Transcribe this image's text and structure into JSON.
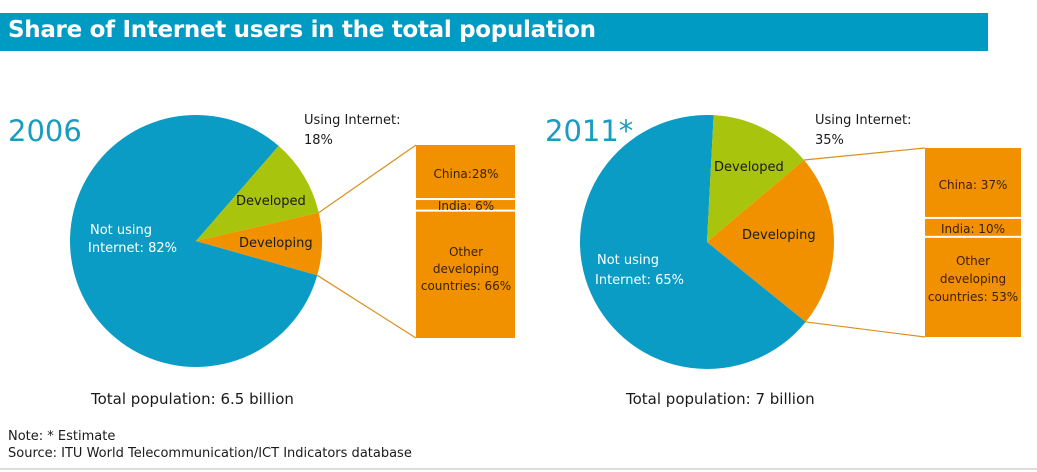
{
  "title": "Share of Internet users in the total population",
  "colors": {
    "not_using": "#0a9cc4",
    "developed": "#a8c40c",
    "developing": "#f29100",
    "bar": "#f29100",
    "connector": "#d9901e",
    "title_bar": "#009bc2"
  },
  "chart_data": [
    {
      "type": "pie",
      "title": "2006",
      "slices": [
        {
          "name": "Not using Internet",
          "label_line1": "Not using",
          "label_line2": "Internet: 82%",
          "value": 82
        },
        {
          "name": "Developed",
          "label": "Developed",
          "value": 10
        },
        {
          "name": "Developing",
          "label": "Developing",
          "value": 8
        }
      ],
      "using_internet_label_line1": "Using Internet:",
      "using_internet_label_line2": "18%",
      "using_internet_value": 18,
      "breakdown": {
        "type": "stacked-bar",
        "of": "Developing",
        "segments": [
          {
            "name": "China",
            "label": "China:28%",
            "value": 28
          },
          {
            "name": "India",
            "label": "India: 6%",
            "value": 6
          },
          {
            "name": "Other developing countries",
            "label_lines": [
              "Other",
              "developing",
              "countries: 66%"
            ],
            "value": 66
          }
        ]
      },
      "total_population": "Total population: 6.5 billion"
    },
    {
      "type": "pie",
      "title": "2011*",
      "slices": [
        {
          "name": "Not using Internet",
          "label_line1": "Not using",
          "label_line2": "Internet:  65%",
          "value": 65
        },
        {
          "name": "Developed",
          "label": "Developed",
          "value": 13
        },
        {
          "name": "Developing",
          "label": "Developing",
          "value": 22
        }
      ],
      "using_internet_label_line1": "Using Internet:",
      "using_internet_label_line2": "35%",
      "using_internet_value": 35,
      "breakdown": {
        "type": "stacked-bar",
        "of": "Developing",
        "segments": [
          {
            "name": "China",
            "label": "China: 37%",
            "value": 37
          },
          {
            "name": "India",
            "label": "India: 10%",
            "value": 10
          },
          {
            "name": "Other developing countries",
            "label_lines": [
              "Other",
              "developing",
              "countries: 53%"
            ],
            "value": 53
          }
        ]
      },
      "total_population": "Total population: 7 billion"
    }
  ],
  "footer": {
    "note": "Note: * Estimate",
    "source": "Source: ITU World Telecommunication/ICT Indicators database"
  }
}
